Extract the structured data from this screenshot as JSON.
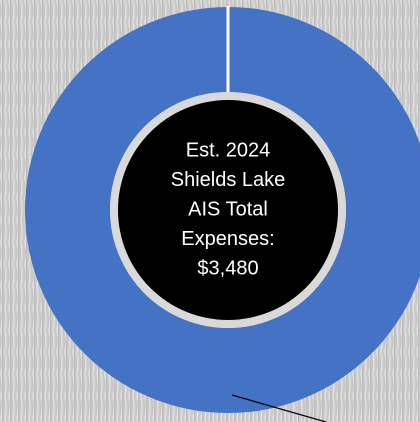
{
  "chart_data": {
    "type": "donut",
    "center_text": [
      "Est. 2024",
      "Shields Lake",
      "AIS Total",
      "Expenses:",
      "$3,480"
    ],
    "values": [
      3480
    ],
    "colors": [
      "#4472c4"
    ]
  }
}
